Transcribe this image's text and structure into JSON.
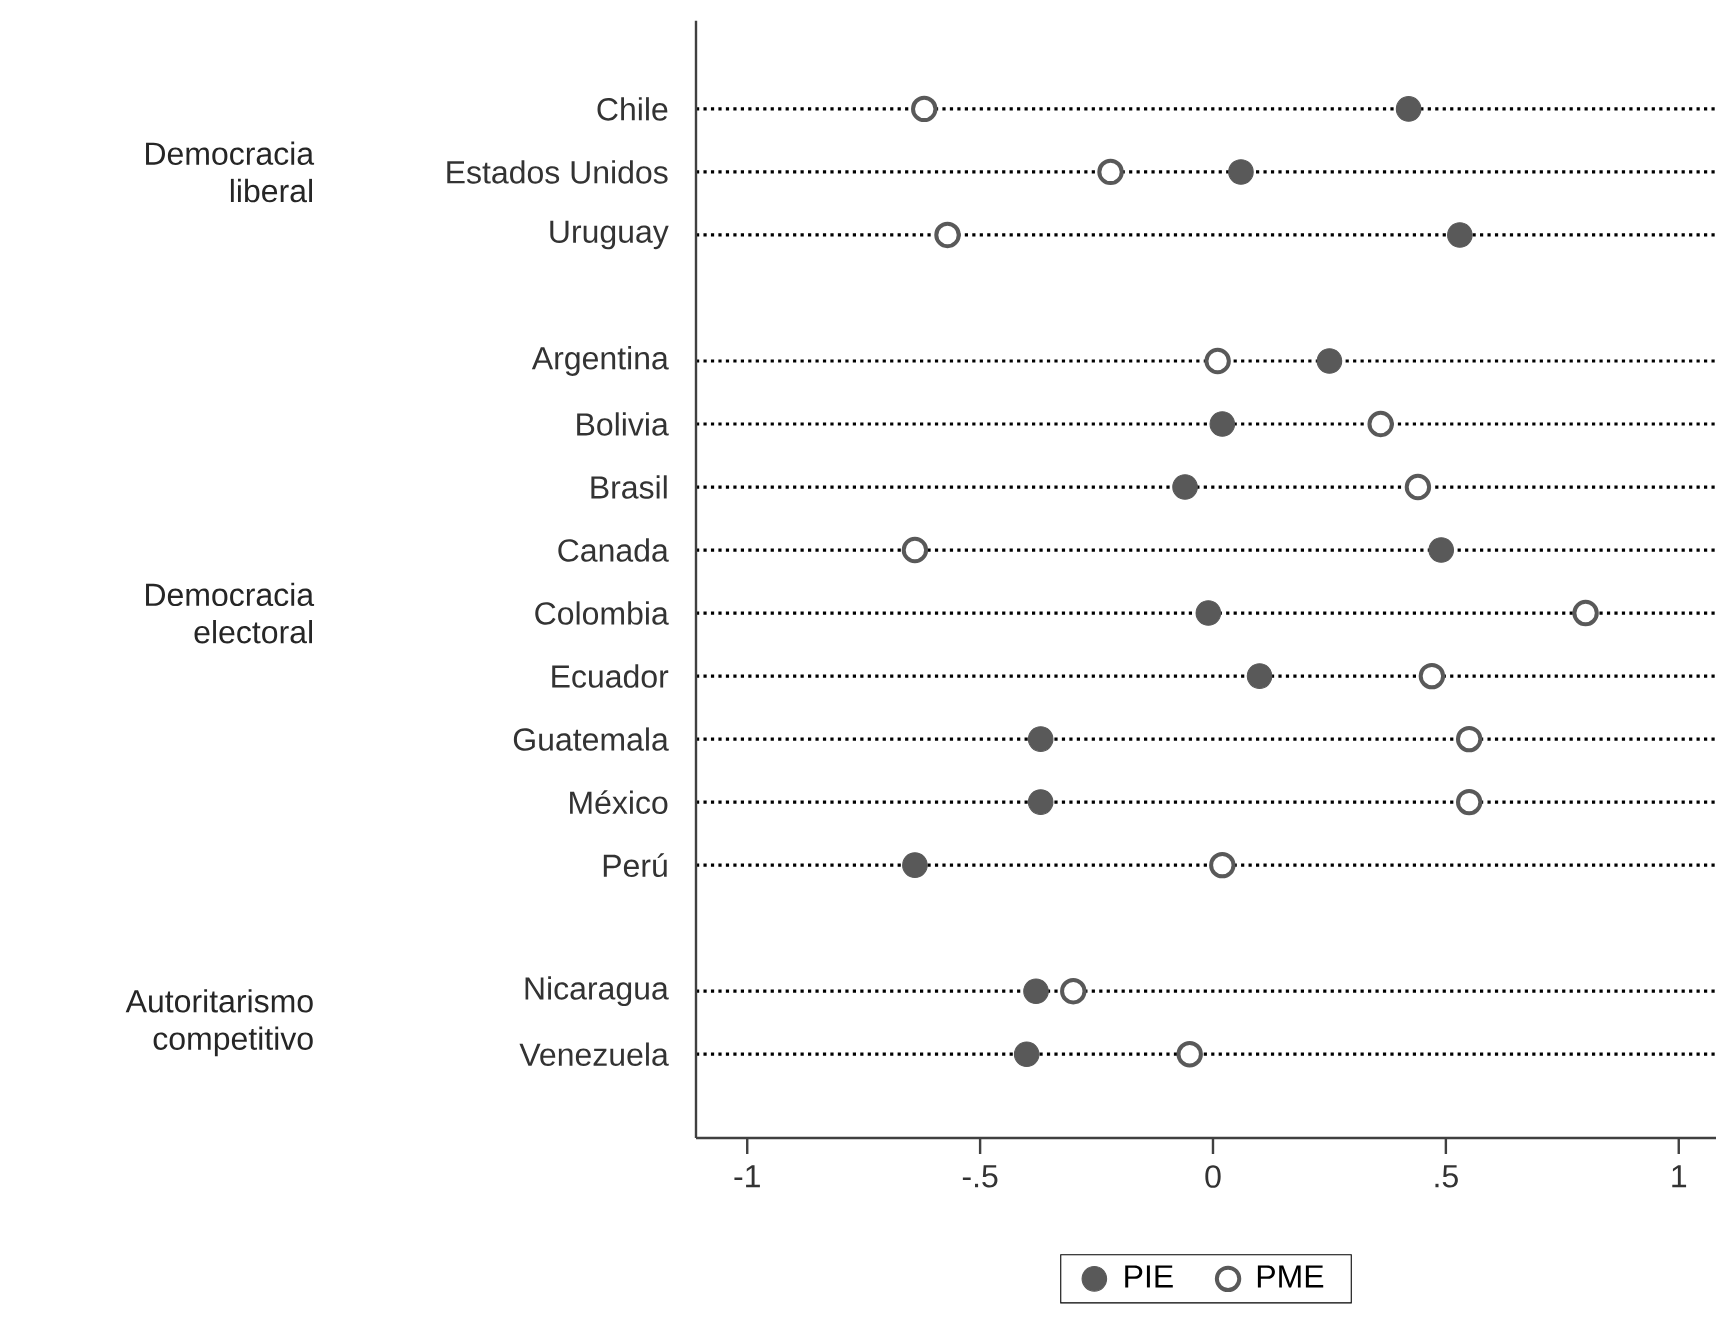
{
  "chart_data": {
    "type": "scatter",
    "categories": [
      "Chile",
      "Estados Unidos",
      "Uruguay",
      null,
      "Argentina",
      "Bolivia",
      "Brasil",
      "Canada",
      "Colombia",
      "Ecuador",
      "Guatemala",
      "México",
      "Perú",
      null,
      "Nicaragua",
      "Venezuela"
    ],
    "orientation": "horizontal",
    "series": [
      {
        "name": "PIE",
        "color": "#595959",
        "values": [
          0.42,
          0.06,
          0.53,
          null,
          0.25,
          0.02,
          -0.06,
          0.49,
          -0.01,
          0.1,
          -0.37,
          -0.37,
          -0.64,
          null,
          -0.38,
          -0.4
        ]
      },
      {
        "name": "PME",
        "color": "#595959",
        "values": [
          -0.62,
          -0.22,
          -0.57,
          null,
          0.01,
          0.36,
          0.44,
          -0.64,
          0.8,
          0.47,
          0.55,
          0.55,
          0.02,
          null,
          -0.3,
          -0.05
        ]
      }
    ],
    "xlim": [
      -1.11,
      1.08
    ],
    "xticks": [
      -1,
      {
        "value": -0.5,
        "label": "-.5"
      },
      0,
      {
        "value": 0.5,
        "label": ".5"
      },
      1
    ],
    "grid": "y",
    "line_style": "dotted",
    "legend": "bottom",
    "annotations": [
      "Democracia liberal",
      "Democracia electoral",
      "Autoritarismo competitivo"
    ]
  }
}
